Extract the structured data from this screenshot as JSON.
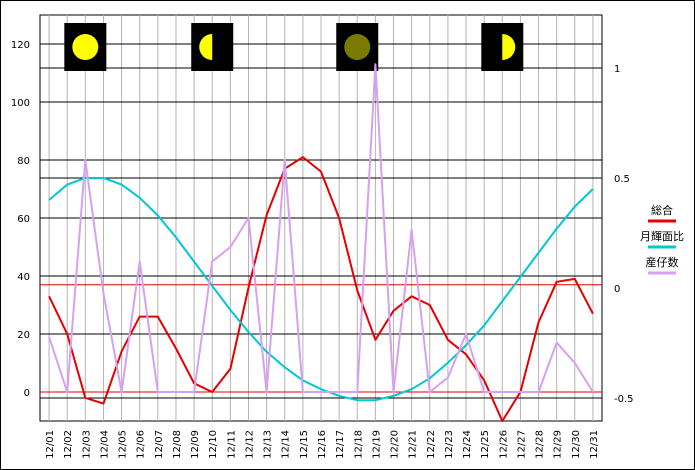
{
  "chart_data": {
    "type": "line",
    "categories": [
      "12/01",
      "12/02",
      "12/03",
      "12/04",
      "12/05",
      "12/06",
      "12/07",
      "12/08",
      "12/09",
      "12/10",
      "12/11",
      "12/12",
      "12/13",
      "12/14",
      "12/15",
      "12/16",
      "12/17",
      "12/18",
      "12/19",
      "12/20",
      "12/21",
      "12/22",
      "12/23",
      "12/24",
      "12/25",
      "12/26",
      "12/27",
      "12/28",
      "12/29",
      "12/30",
      "12/31"
    ],
    "left_axis": {
      "min": -10,
      "max": 130,
      "ticks": [
        0,
        20,
        40,
        60,
        80,
        100,
        120
      ],
      "tick_labels": [
        "0",
        "20",
        "40",
        "60",
        "80",
        "100",
        "120"
      ]
    },
    "right_axis": {
      "min": -0.5,
      "max": 1,
      "ticks": [
        -0.5,
        0,
        0.5,
        1
      ],
      "tick_labels": [
        "-0.5",
        "0",
        "0.5",
        "1"
      ]
    },
    "series": [
      {
        "name": "総合",
        "color": "#e60000",
        "axis": "left",
        "values": [
          33,
          20,
          -2,
          -4,
          14,
          26,
          26,
          15,
          3,
          0,
          8,
          36,
          61,
          77,
          81,
          76,
          60,
          35,
          18,
          28,
          33,
          30,
          18,
          13,
          4,
          -10,
          0,
          24,
          38,
          39,
          27
        ]
      },
      {
        "name": "月輝面比",
        "color": "#00c8d2",
        "axis": "right",
        "values": [
          0.4,
          0.47,
          0.5,
          0.5,
          0.47,
          0.41,
          0.33,
          0.23,
          0.12,
          0.01,
          -0.1,
          -0.2,
          -0.29,
          -0.36,
          -0.42,
          -0.46,
          -0.49,
          -0.51,
          -0.51,
          -0.49,
          -0.46,
          -0.41,
          -0.34,
          -0.26,
          -0.17,
          -0.06,
          0.05,
          0.16,
          0.27,
          0.37,
          0.45
        ]
      },
      {
        "name": "産仔数",
        "color": "#d8a0f0",
        "axis": "left",
        "values": [
          19,
          0,
          80,
          34,
          0,
          45,
          0,
          0,
          0,
          45,
          50,
          60,
          0,
          80,
          0,
          0,
          0,
          0,
          113,
          0,
          56,
          0,
          5,
          20,
          0,
          0,
          0,
          0,
          17,
          10,
          0
        ]
      }
    ],
    "hlines": [
      {
        "axis": "left",
        "value": 37,
        "color": "#e60000"
      },
      {
        "axis": "left",
        "value": 0,
        "color": "#e60000"
      },
      {
        "axis": "right",
        "value": 1,
        "color": "#000000"
      },
      {
        "axis": "right",
        "value": 0.5,
        "color": "#000000"
      },
      {
        "axis": "right",
        "value": -0.5,
        "color": "#000000"
      }
    ],
    "moon_phases": [
      {
        "category": "12/03",
        "phase": "full",
        "color": "#ffff00"
      },
      {
        "category": "12/10",
        "phase": "last-quarter",
        "color": "#ffff00"
      },
      {
        "category": "12/18",
        "phase": "new",
        "color": "#7a7a00"
      },
      {
        "category": "12/26",
        "phase": "first-quarter",
        "color": "#ffff00"
      }
    ],
    "legend_placement": "right",
    "grid": true
  }
}
